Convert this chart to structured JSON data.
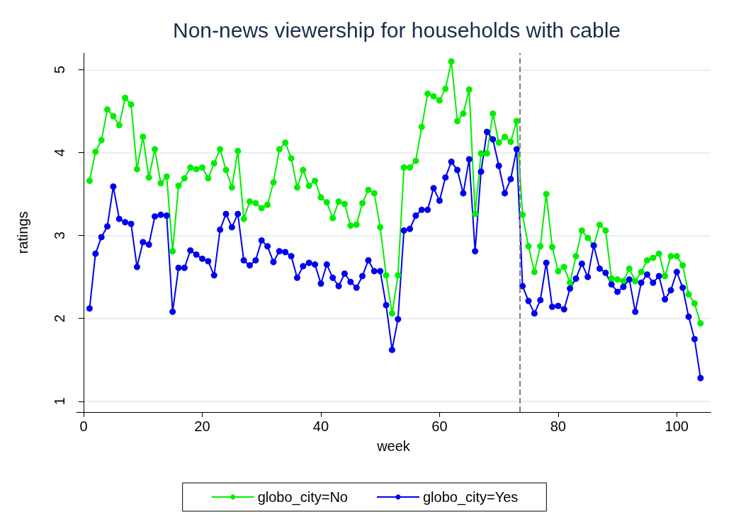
{
  "chart_data": {
    "type": "line",
    "title": "Non-news viewership for households with cable",
    "xlabel": "week",
    "ylabel": "ratings",
    "x": [
      1,
      2,
      3,
      4,
      5,
      6,
      7,
      8,
      9,
      10,
      11,
      12,
      13,
      14,
      15,
      16,
      17,
      18,
      19,
      20,
      21,
      22,
      23,
      24,
      25,
      26,
      27,
      28,
      29,
      30,
      31,
      32,
      33,
      34,
      35,
      36,
      37,
      38,
      39,
      40,
      41,
      42,
      43,
      44,
      45,
      46,
      47,
      48,
      49,
      50,
      51,
      52,
      53,
      54,
      55,
      56,
      57,
      58,
      59,
      60,
      61,
      62,
      63,
      64,
      65,
      66,
      67,
      68,
      69,
      70,
      71,
      72,
      73,
      74,
      75,
      76,
      77,
      78,
      79,
      80,
      81,
      82,
      83,
      84,
      85,
      86,
      87,
      88,
      89,
      90,
      91,
      92,
      93,
      94,
      95,
      96,
      97,
      98,
      99,
      100,
      101,
      102,
      103,
      104
    ],
    "series": [
      {
        "name": "globo_city=No",
        "color": "#00ee00",
        "values": [
          3.66,
          4.01,
          4.15,
          4.52,
          4.44,
          4.33,
          4.66,
          4.58,
          3.8,
          4.19,
          3.7,
          4.04,
          3.63,
          3.71,
          2.81,
          3.6,
          3.69,
          3.82,
          3.8,
          3.82,
          3.69,
          3.87,
          4.04,
          3.79,
          3.58,
          4.02,
          3.2,
          3.41,
          3.39,
          3.33,
          3.37,
          3.64,
          4.04,
          4.12,
          3.93,
          3.58,
          3.79,
          3.6,
          3.66,
          3.46,
          3.4,
          3.21,
          3.41,
          3.38,
          3.12,
          3.13,
          3.39,
          3.55,
          3.51,
          3.1,
          2.52,
          2.06,
          2.52,
          3.82,
          3.82,
          3.9,
          4.31,
          4.71,
          4.68,
          4.63,
          4.77,
          5.1,
          4.38,
          4.47,
          4.76,
          3.26,
          3.99,
          3.99,
          4.47,
          4.12,
          4.19,
          4.13,
          4.38,
          3.25,
          2.87,
          2.56,
          2.87,
          3.5,
          2.86,
          2.57,
          2.62,
          2.43,
          2.75,
          3.06,
          2.97,
          2.88,
          3.13,
          3.06,
          2.48,
          2.47,
          2.45,
          2.6,
          2.45,
          2.56,
          2.7,
          2.73,
          2.78,
          2.51,
          2.75,
          2.75,
          2.64,
          2.29,
          2.18,
          1.94
        ]
      },
      {
        "name": "globo_city=Yes",
        "color": "#0000ee",
        "values": [
          2.12,
          2.78,
          2.98,
          3.11,
          3.59,
          3.2,
          3.16,
          3.14,
          2.62,
          2.92,
          2.89,
          3.23,
          3.25,
          3.24,
          2.08,
          2.61,
          2.61,
          2.82,
          2.77,
          2.72,
          2.69,
          2.52,
          3.07,
          3.26,
          3.1,
          3.26,
          2.7,
          2.64,
          2.7,
          2.94,
          2.87,
          2.68,
          2.81,
          2.8,
          2.75,
          2.49,
          2.63,
          2.67,
          2.65,
          2.42,
          2.65,
          2.49,
          2.39,
          2.54,
          2.44,
          2.37,
          2.51,
          2.7,
          2.57,
          2.57,
          2.16,
          1.62,
          1.99,
          3.06,
          3.08,
          3.24,
          3.31,
          3.31,
          3.57,
          3.42,
          3.7,
          3.89,
          3.79,
          3.51,
          3.92,
          2.81,
          3.77,
          4.25,
          4.16,
          3.84,
          3.51,
          3.68,
          4.04,
          2.39,
          2.21,
          2.06,
          2.22,
          2.67,
          2.14,
          2.15,
          2.11,
          2.36,
          2.48,
          2.66,
          2.5,
          2.88,
          2.6,
          2.55,
          2.41,
          2.32,
          2.38,
          2.47,
          2.08,
          2.43,
          2.53,
          2.43,
          2.51,
          2.23,
          2.34,
          2.56,
          2.37,
          2.02,
          1.75,
          1.28
        ]
      }
    ],
    "xlim": [
      -1.2,
      105.7
    ],
    "xticks": [
      0,
      20,
      40,
      60,
      80,
      100
    ],
    "ylim": [
      0.87,
      5.2
    ],
    "yticks": [
      1,
      2,
      3,
      4,
      5
    ],
    "ref_lines": [
      {
        "axis": "x",
        "value": 73.5,
        "color": "#808080",
        "line_style": "dashed"
      }
    ],
    "grid": "y",
    "legend": "bottom",
    "marker": "circle",
    "line_style": "solid"
  }
}
